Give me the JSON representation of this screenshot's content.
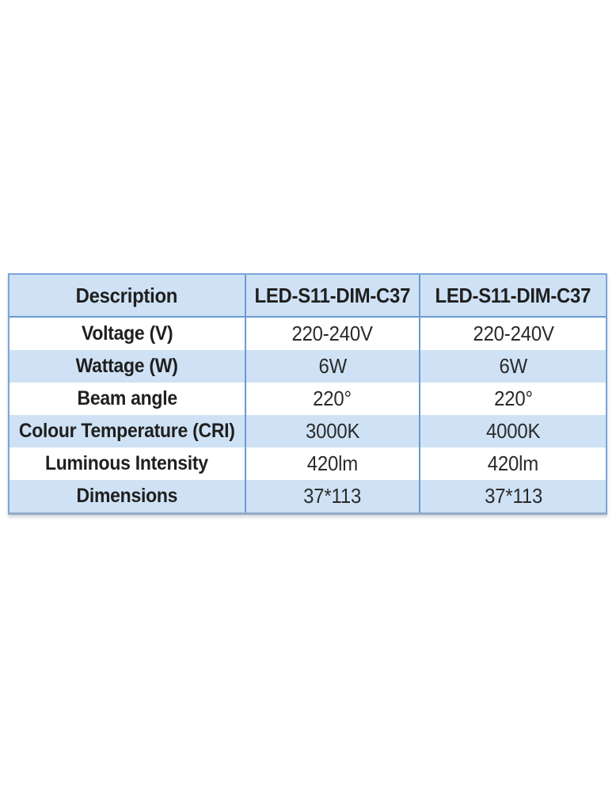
{
  "table": {
    "header": {
      "col1": "Description",
      "col2": "LED-S11-DIM-C37",
      "col3": "LED-S11-DIM-C37"
    },
    "rows": [
      {
        "label": "Voltage (V)",
        "v1": "220-240V",
        "v2": "220-240V"
      },
      {
        "label": "Wattage (W)",
        "v1": "6W",
        "v2": "6W"
      },
      {
        "label": "Beam angle",
        "v1": "220°",
        "v2": "220°"
      },
      {
        "label": "Colour Temperature (CRI)",
        "v1": "3000K",
        "v2": "4000K"
      },
      {
        "label": "Luminous Intensity",
        "v1": "420lm",
        "v2": "420lm"
      },
      {
        "label": "Dimensions",
        "v1": "37*113",
        "v2": "37*113"
      }
    ],
    "colors": {
      "row_blue": "#cfe2f5",
      "grid_line": "#6a9ad2",
      "outer_border": "#7ba6d8",
      "text": "#1f1f1f"
    }
  }
}
